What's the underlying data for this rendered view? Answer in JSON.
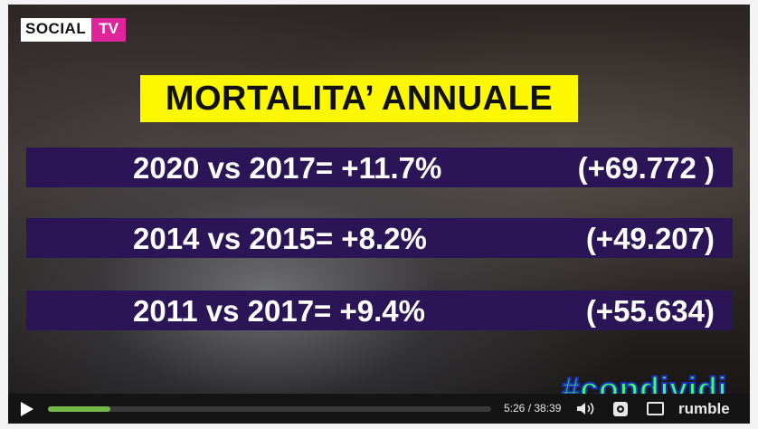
{
  "logo": {
    "part1": "SOCIAL",
    "part2": "TV"
  },
  "title": "MORTALITA’ ANNUALE",
  "rows": [
    {
      "left": "2020 vs 2017= +11.7%",
      "right": "(+69.772 )"
    },
    {
      "left": "2014 vs 2015= +8.2%",
      "right": "(+49.207)"
    },
    {
      "left": "2011 vs 2017= +9.4%",
      "right": "(+55.634)"
    }
  ],
  "hashtag": "#condividi",
  "player": {
    "time": "5:26 / 38:39",
    "brand": "rumble",
    "progress": 0.14,
    "progress_color": "#75b84a"
  },
  "colors": {
    "title_bg": "#fdf800",
    "row_bg": "#2c1557",
    "logo_pink": "#e0259c",
    "hashtag": "#3cff62"
  }
}
